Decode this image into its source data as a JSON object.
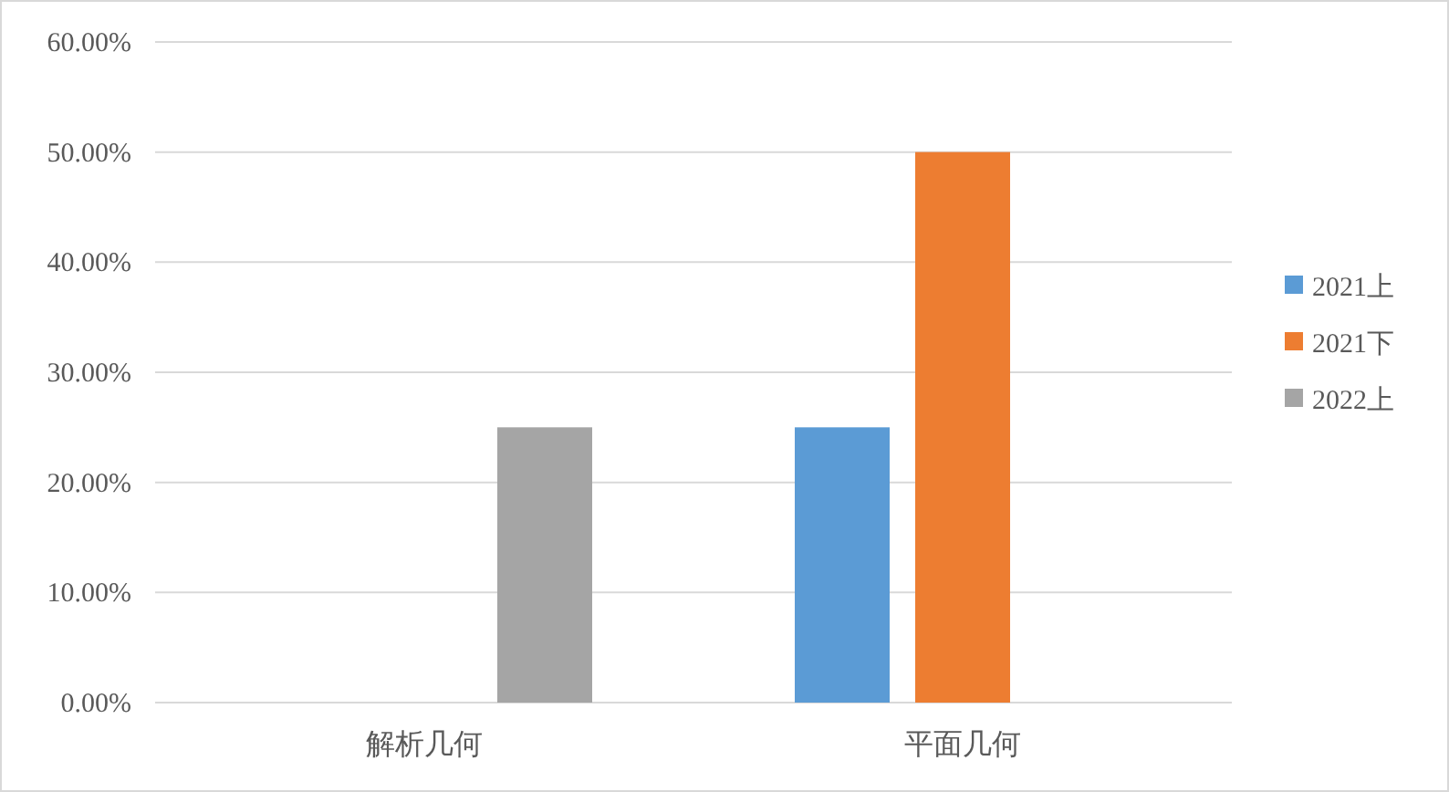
{
  "chart_data": {
    "type": "bar",
    "categories": [
      "解析几何",
      "平面几何"
    ],
    "series": [
      {
        "name": "2021上",
        "color": "#5b9bd5",
        "values": [
          0,
          25
        ]
      },
      {
        "name": "2021下",
        "color": "#ed7d31",
        "values": [
          0,
          50
        ]
      },
      {
        "name": "2022上",
        "color": "#a5a5a5",
        "values": [
          25,
          0
        ]
      }
    ],
    "ylim": [
      0,
      60
    ],
    "yticks": [
      {
        "value": 0,
        "label": "0.00%"
      },
      {
        "value": 10,
        "label": "10.00%"
      },
      {
        "value": 20,
        "label": "20.00%"
      },
      {
        "value": 30,
        "label": "30.00%"
      },
      {
        "value": 40,
        "label": "40.00%"
      },
      {
        "value": 50,
        "label": "50.00%"
      },
      {
        "value": 60,
        "label": "60.00%"
      }
    ],
    "grid": "y",
    "legend": "right"
  }
}
